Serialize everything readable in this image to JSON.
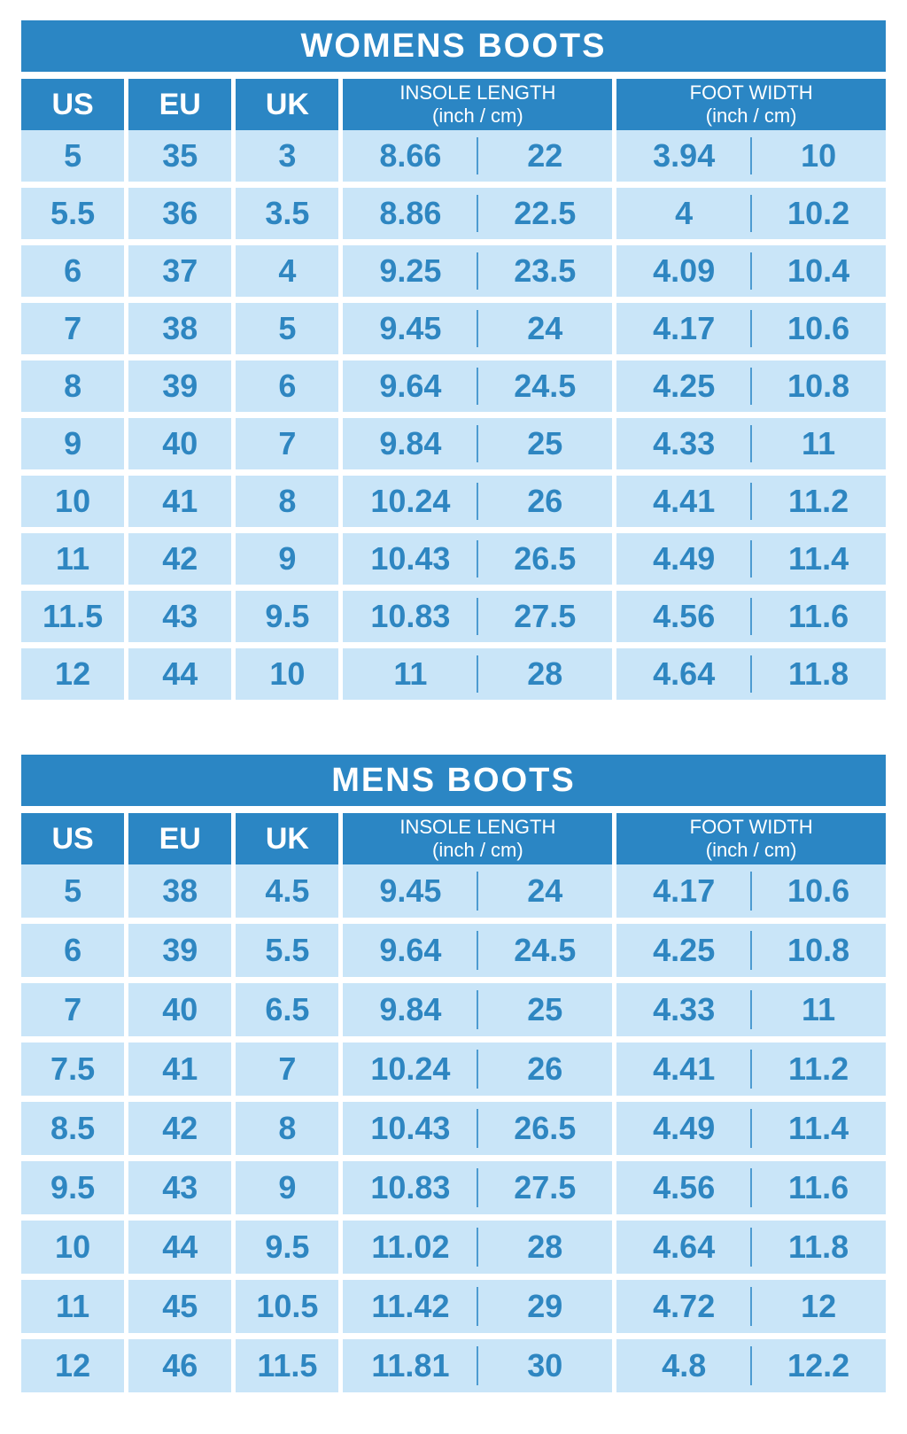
{
  "colors": {
    "header_bg": "#2b86c4",
    "header_text": "#ffffff",
    "cell_bg": "#c9e5f8",
    "cell_text": "#2e86c1",
    "divider": "#4d9bd1",
    "page_bg": "#ffffff"
  },
  "tables": [
    {
      "title": "WOMENS BOOTS",
      "columns": {
        "us": "US",
        "eu": "EU",
        "uk": "UK",
        "insole_line1": "INSOLE LENGTH",
        "insole_line2": "(inch / cm)",
        "foot_line1": "FOOT WIDTH",
        "foot_line2": "(inch / cm)"
      },
      "rows": [
        {
          "us": "5",
          "eu": "35",
          "uk": "3",
          "insole_inch": "8.66",
          "insole_cm": "22",
          "foot_inch": "3.94",
          "foot_cm": "10"
        },
        {
          "us": "5.5",
          "eu": "36",
          "uk": "3.5",
          "insole_inch": "8.86",
          "insole_cm": "22.5",
          "foot_inch": "4",
          "foot_cm": "10.2"
        },
        {
          "us": "6",
          "eu": "37",
          "uk": "4",
          "insole_inch": "9.25",
          "insole_cm": "23.5",
          "foot_inch": "4.09",
          "foot_cm": "10.4"
        },
        {
          "us": "7",
          "eu": "38",
          "uk": "5",
          "insole_inch": "9.45",
          "insole_cm": "24",
          "foot_inch": "4.17",
          "foot_cm": "10.6"
        },
        {
          "us": "8",
          "eu": "39",
          "uk": "6",
          "insole_inch": "9.64",
          "insole_cm": "24.5",
          "foot_inch": "4.25",
          "foot_cm": "10.8"
        },
        {
          "us": "9",
          "eu": "40",
          "uk": "7",
          "insole_inch": "9.84",
          "insole_cm": "25",
          "foot_inch": "4.33",
          "foot_cm": "11"
        },
        {
          "us": "10",
          "eu": "41",
          "uk": "8",
          "insole_inch": "10.24",
          "insole_cm": "26",
          "foot_inch": "4.41",
          "foot_cm": "11.2"
        },
        {
          "us": "11",
          "eu": "42",
          "uk": "9",
          "insole_inch": "10.43",
          "insole_cm": "26.5",
          "foot_inch": "4.49",
          "foot_cm": "11.4"
        },
        {
          "us": "11.5",
          "eu": "43",
          "uk": "9.5",
          "insole_inch": "10.83",
          "insole_cm": "27.5",
          "foot_inch": "4.56",
          "foot_cm": "11.6"
        },
        {
          "us": "12",
          "eu": "44",
          "uk": "10",
          "insole_inch": "11",
          "insole_cm": "28",
          "foot_inch": "4.64",
          "foot_cm": "11.8"
        }
      ]
    },
    {
      "title": "MENS BOOTS",
      "columns": {
        "us": "US",
        "eu": "EU",
        "uk": "UK",
        "insole_line1": "INSOLE LENGTH",
        "insole_line2": "(inch / cm)",
        "foot_line1": "FOOT WIDTH",
        "foot_line2": "(inch / cm)"
      },
      "rows": [
        {
          "us": "5",
          "eu": "38",
          "uk": "4.5",
          "insole_inch": "9.45",
          "insole_cm": "24",
          "foot_inch": "4.17",
          "foot_cm": "10.6"
        },
        {
          "us": "6",
          "eu": "39",
          "uk": "5.5",
          "insole_inch": "9.64",
          "insole_cm": "24.5",
          "foot_inch": "4.25",
          "foot_cm": "10.8"
        },
        {
          "us": "7",
          "eu": "40",
          "uk": "6.5",
          "insole_inch": "9.84",
          "insole_cm": "25",
          "foot_inch": "4.33",
          "foot_cm": "11"
        },
        {
          "us": "7.5",
          "eu": "41",
          "uk": "7",
          "insole_inch": "10.24",
          "insole_cm": "26",
          "foot_inch": "4.41",
          "foot_cm": "11.2"
        },
        {
          "us": "8.5",
          "eu": "42",
          "uk": "8",
          "insole_inch": "10.43",
          "insole_cm": "26.5",
          "foot_inch": "4.49",
          "foot_cm": "11.4"
        },
        {
          "us": "9.5",
          "eu": "43",
          "uk": "9",
          "insole_inch": "10.83",
          "insole_cm": "27.5",
          "foot_inch": "4.56",
          "foot_cm": "11.6"
        },
        {
          "us": "10",
          "eu": "44",
          "uk": "9.5",
          "insole_inch": "11.02",
          "insole_cm": "28",
          "foot_inch": "4.64",
          "foot_cm": "11.8"
        },
        {
          "us": "11",
          "eu": "45",
          "uk": "10.5",
          "insole_inch": "11.42",
          "insole_cm": "29",
          "foot_inch": "4.72",
          "foot_cm": "12"
        },
        {
          "us": "12",
          "eu": "46",
          "uk": "11.5",
          "insole_inch": "11.81",
          "insole_cm": "30",
          "foot_inch": "4.8",
          "foot_cm": "12.2"
        }
      ]
    }
  ],
  "chart_data": [
    {
      "type": "table",
      "title": "WOMENS BOOTS",
      "columns": [
        "US",
        "EU",
        "UK",
        "INSOLE LENGTH (inch)",
        "INSOLE LENGTH (cm)",
        "FOOT WIDTH (inch)",
        "FOOT WIDTH (cm)"
      ],
      "rows": [
        [
          5,
          35,
          3,
          8.66,
          22,
          3.94,
          10
        ],
        [
          5.5,
          36,
          3.5,
          8.86,
          22.5,
          4,
          10.2
        ],
        [
          6,
          37,
          4,
          9.25,
          23.5,
          4.09,
          10.4
        ],
        [
          7,
          38,
          5,
          9.45,
          24,
          4.17,
          10.6
        ],
        [
          8,
          39,
          6,
          9.64,
          24.5,
          4.25,
          10.8
        ],
        [
          9,
          40,
          7,
          9.84,
          25,
          4.33,
          11
        ],
        [
          10,
          41,
          8,
          10.24,
          26,
          4.41,
          11.2
        ],
        [
          11,
          42,
          9,
          10.43,
          26.5,
          4.49,
          11.4
        ],
        [
          11.5,
          43,
          9.5,
          10.83,
          27.5,
          4.56,
          11.6
        ],
        [
          12,
          44,
          10,
          11,
          28,
          4.64,
          11.8
        ]
      ]
    },
    {
      "type": "table",
      "title": "MENS BOOTS",
      "columns": [
        "US",
        "EU",
        "UK",
        "INSOLE LENGTH (inch)",
        "INSOLE LENGTH (cm)",
        "FOOT WIDTH (inch)",
        "FOOT WIDTH (cm)"
      ],
      "rows": [
        [
          5,
          38,
          4.5,
          9.45,
          24,
          4.17,
          10.6
        ],
        [
          6,
          39,
          5.5,
          9.64,
          24.5,
          4.25,
          10.8
        ],
        [
          7,
          40,
          6.5,
          9.84,
          25,
          4.33,
          11
        ],
        [
          7.5,
          41,
          7,
          10.24,
          26,
          4.41,
          11.2
        ],
        [
          8.5,
          42,
          8,
          10.43,
          26.5,
          4.49,
          11.4
        ],
        [
          9.5,
          43,
          9,
          10.83,
          27.5,
          4.56,
          11.6
        ],
        [
          10,
          44,
          9.5,
          11.02,
          28,
          4.64,
          11.8
        ],
        [
          11,
          45,
          10.5,
          11.42,
          29,
          4.72,
          12
        ],
        [
          12,
          46,
          11.5,
          11.81,
          30,
          4.8,
          12.2
        ]
      ]
    }
  ]
}
